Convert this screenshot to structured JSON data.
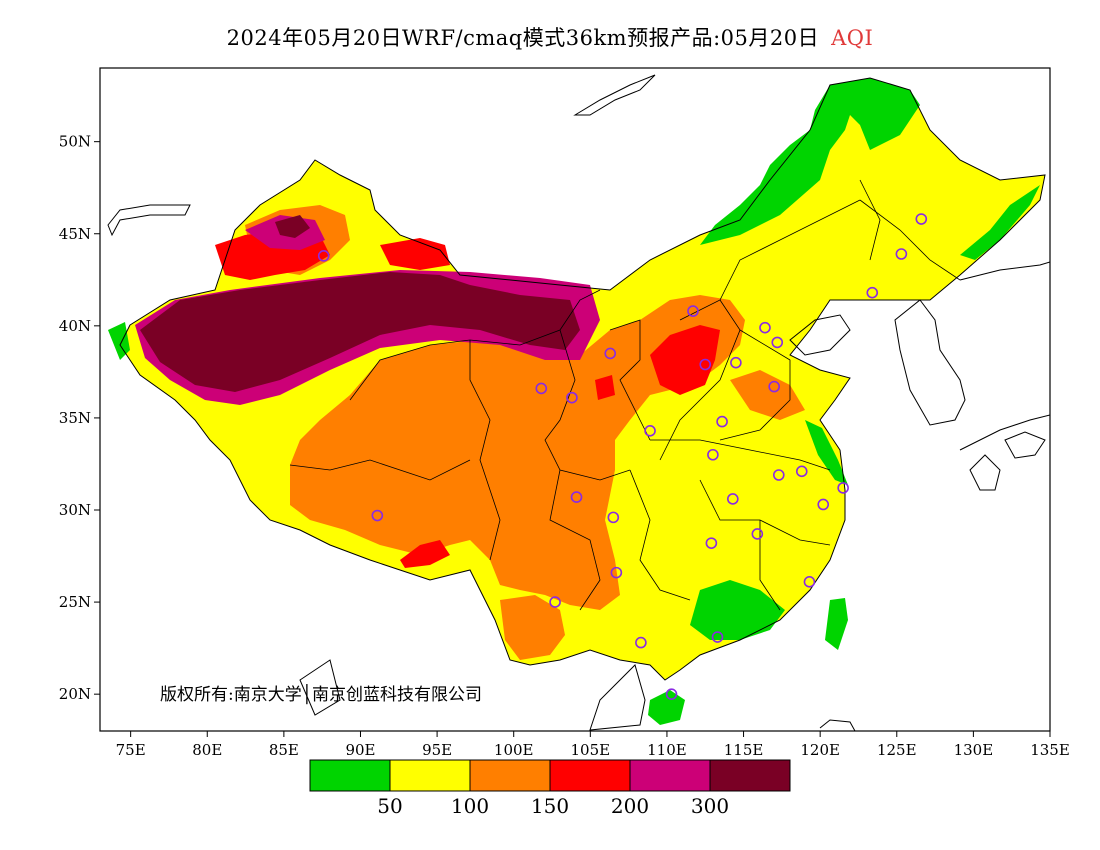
{
  "title": {
    "text": "2024年05月20日WRF/cmaq模式36km预报产品:05月20日",
    "variable": "AQI",
    "variable_color": "#e03a3a"
  },
  "map": {
    "lon_range": [
      73,
      135
    ],
    "lat_range": [
      18,
      54
    ],
    "lon_ticks": [
      "75E",
      "80E",
      "85E",
      "90E",
      "95E",
      "100E",
      "105E",
      "110E",
      "115E",
      "120E",
      "125E",
      "130E",
      "135E"
    ],
    "lat_ticks": [
      "20N",
      "25N",
      "30N",
      "35N",
      "40N",
      "45N",
      "50N"
    ]
  },
  "colorbar": {
    "colors": [
      "#00d400",
      "#ffff00",
      "#ff7f00",
      "#ff0000",
      "#cc0077",
      "#7a0025"
    ],
    "labels": [
      "50",
      "100",
      "150",
      "200",
      "300"
    ]
  },
  "copyright": "版权所有:南京大学│南京创蓝科技有限公司",
  "stations": [
    [
      87.6,
      43.8
    ],
    [
      91.1,
      29.7
    ],
    [
      101.8,
      36.6
    ],
    [
      103.8,
      36.1
    ],
    [
      106.3,
      38.5
    ],
    [
      111.7,
      40.8
    ],
    [
      112.5,
      37.9
    ],
    [
      114.5,
      38.0
    ],
    [
      116.4,
      39.9
    ],
    [
      117.2,
      39.1
    ],
    [
      117.0,
      36.7
    ],
    [
      113.6,
      34.8
    ],
    [
      108.9,
      34.3
    ],
    [
      104.1,
      30.7
    ],
    [
      106.5,
      29.6
    ],
    [
      106.7,
      26.6
    ],
    [
      102.7,
      25.0
    ],
    [
      108.3,
      22.8
    ],
    [
      113.3,
      23.1
    ],
    [
      110.3,
      20.0
    ],
    [
      112.9,
      28.2
    ],
    [
      114.3,
      30.6
    ],
    [
      115.9,
      28.7
    ],
    [
      117.3,
      31.9
    ],
    [
      118.8,
      32.1
    ],
    [
      120.2,
      30.3
    ],
    [
      121.5,
      31.2
    ],
    [
      119.3,
      26.1
    ],
    [
      123.4,
      41.8
    ],
    [
      125.3,
      43.9
    ],
    [
      126.6,
      45.8
    ],
    [
      113.0,
      33.0
    ]
  ]
}
